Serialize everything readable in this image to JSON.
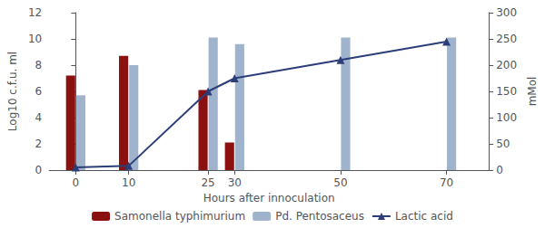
{
  "chart_data": {
    "type": "bar",
    "x": [
      0,
      10,
      25,
      30,
      50,
      70
    ],
    "xlim": [
      -5,
      78
    ],
    "xticks": [
      0,
      10,
      25,
      30,
      50,
      70
    ],
    "ylim": [
      0,
      12
    ],
    "yticks": [
      0,
      2,
      4,
      6,
      8,
      10,
      12
    ],
    "y2lim": [
      0,
      300
    ],
    "y2ticks": [
      0,
      50,
      100,
      150,
      200,
      250,
      300
    ],
    "xlabel": "Hours after innoculation",
    "ylabel": "Log10 c.f.u. ml",
    "y2label": "mMol",
    "grid": false,
    "legend": "bottom",
    "series": [
      {
        "name": "Samonella typhimurium",
        "type": "bar",
        "color": "#8B1010",
        "values": [
          7.2,
          8.7,
          6.1,
          2.1,
          0,
          0
        ]
      },
      {
        "name": "Pd. Pentosaceus",
        "type": "bar",
        "color": "#9fb4cc",
        "values": [
          5.7,
          8.0,
          10.1,
          9.6,
          10.1,
          10.1
        ]
      },
      {
        "name": "Lactic acid",
        "type": "line",
        "axis": "y2",
        "marker": "triangle",
        "color": "#2c3e7a",
        "values": [
          5,
          8,
          150,
          175,
          210,
          245
        ]
      }
    ]
  }
}
